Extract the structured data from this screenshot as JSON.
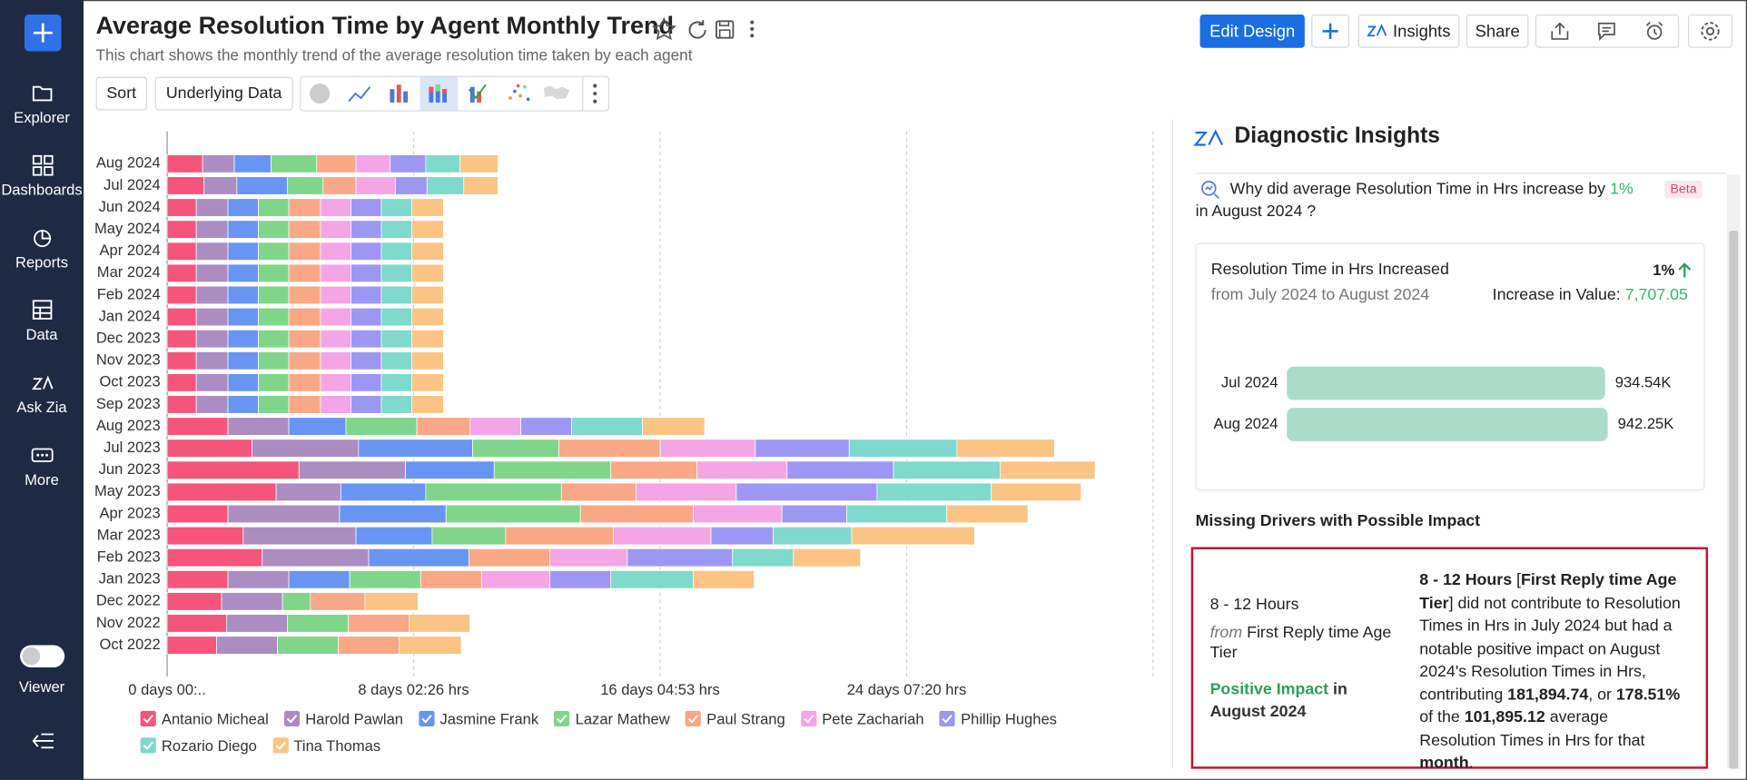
{
  "sidebar": {
    "items": [
      "Explorer",
      "Dashboards",
      "Reports",
      "Data",
      "Ask Zia",
      "More"
    ],
    "viewer": "Viewer"
  },
  "header": {
    "title": "Average Resolution Time by Agent Monthly Trend",
    "subtitle": "This chart shows the monthly trend of the average resolution time taken by each agent",
    "buttons": [
      "Edit Design",
      "Insights",
      "Share"
    ]
  },
  "toolbar": {
    "buttons": [
      "Sort",
      "Underlying Data"
    ]
  },
  "chart_data": {
    "type": "bar",
    "orientation": "horizontal",
    "stacked": true,
    "grid": true,
    "legend": "bottom",
    "categories": [
      "Aug 2024",
      "Jul 2024",
      "Jun 2024",
      "May 2024",
      "Apr 2024",
      "Mar 2024",
      "Feb 2024",
      "Jan 2024",
      "Dec 2023",
      "Nov 2023",
      "Oct 2023",
      "Sep 2023",
      "Aug 2023",
      "Jul 2023",
      "Jun 2023",
      "May 2023",
      "Apr 2023",
      "Mar 2023",
      "Feb 2023",
      "Jan 2023",
      "Dec 2022",
      "Nov 2022",
      "Oct 2022"
    ],
    "xlim": [
      0,
      777.78
    ],
    "xticks": [
      {
        "value": 0,
        "label": "0 days 00:.."
      },
      {
        "value": 194.43,
        "label": "8 days 02:26 hrs"
      },
      {
        "value": 388.88,
        "label": "16 days 04:53 hrs"
      },
      {
        "value": 583.33,
        "label": "24 days 07:20 hrs"
      }
    ],
    "series": [
      {
        "name": "Antanio Micheal",
        "color": "#f5557b",
        "values": [
          28,
          29,
          23,
          23,
          23,
          23,
          23,
          23,
          23,
          23,
          23,
          23,
          48,
          67,
          104,
          86,
          48,
          60,
          75,
          48,
          43,
          47,
          39
        ]
      },
      {
        "name": "Harold Pawlan",
        "color": "#ab8dc2",
        "values": [
          25,
          26,
          25,
          25,
          25,
          25,
          25,
          25,
          25,
          25,
          25,
          25,
          48,
          84,
          84,
          51,
          88,
          89,
          84,
          48,
          48,
          48,
          48
        ]
      },
      {
        "name": "Jasmine Frank",
        "color": "#6895f2",
        "values": [
          29,
          40,
          24,
          24,
          24,
          24,
          24,
          24,
          24,
          24,
          24,
          24,
          45,
          90,
          70,
          67,
          84,
          60,
          79,
          48,
          null,
          null,
          null
        ]
      },
      {
        "name": "Lazar Mathew",
        "color": "#7fd68a",
        "values": [
          36,
          28,
          24,
          24,
          24,
          24,
          24,
          24,
          24,
          24,
          24,
          24,
          56,
          68,
          92,
          107,
          106,
          58,
          null,
          56,
          22,
          48,
          48
        ]
      },
      {
        "name": "Paul Strang",
        "color": "#f9a785",
        "values": [
          31,
          26,
          25,
          25,
          25,
          25,
          25,
          25,
          25,
          25,
          25,
          25,
          42,
          80,
          68,
          59,
          89,
          85,
          64,
          48,
          43,
          48,
          48
        ]
      },
      {
        "name": "Pete Zachariah",
        "color": "#f4a5e6",
        "values": [
          27,
          31,
          24,
          24,
          24,
          24,
          24,
          24,
          24,
          24,
          24,
          24,
          40,
          75,
          71,
          79,
          70,
          77,
          61,
          54,
          null,
          null,
          null
        ]
      },
      {
        "name": "Phillip Hughes",
        "color": "#9d97f4",
        "values": [
          28,
          25,
          24,
          24,
          24,
          24,
          24,
          24,
          24,
          24,
          24,
          24,
          40,
          74,
          84,
          111,
          51,
          49,
          83,
          48,
          null,
          null,
          null
        ]
      },
      {
        "name": "Rozario Diego",
        "color": "#7fd9cd",
        "values": [
          27,
          29,
          24,
          24,
          24,
          24,
          24,
          24,
          24,
          24,
          24,
          24,
          56,
          85,
          84,
          90,
          79,
          62,
          48,
          65,
          null,
          null,
          null
        ]
      },
      {
        "name": "Tina Thomas",
        "color": "#fcc484",
        "values": [
          30,
          27,
          25,
          25,
          25,
          25,
          25,
          25,
          25,
          25,
          25,
          25,
          49,
          77,
          75,
          71,
          64,
          97,
          53,
          48,
          42,
          48,
          49
        ]
      }
    ]
  },
  "insights": {
    "title": "Diagnostic Insights",
    "question": [
      "Why did average Resolution Time in Hrs increase by ",
      "1%",
      " in August 2024 ?"
    ],
    "badge": "Beta",
    "summary": {
      "title": "Resolution Time in Hrs Increased",
      "period": "from July 2024 to August 2024",
      "change": "1%",
      "increase_label": "Increase in Value:",
      "increase_value": "7,707.05"
    },
    "comparison": {
      "type": "bar",
      "categories": [
        "Jul 2024",
        "Aug 2024"
      ],
      "values": [
        934540,
        942250
      ],
      "value_labels": [
        "934.54K",
        "942.25K"
      ],
      "color": "#abdcc9"
    },
    "drivers_title": "Missing Drivers with Possible Impact",
    "driver": {
      "name": "8 - 12 Hours",
      "from": "from",
      "source": "First Reply time Age Tier",
      "impact": "Positive Impact",
      "impact_period": "in August 2024",
      "description": [
        "8 - 12 Hours",
        " [",
        "First Reply time Age Tier",
        "] did not contribute to Resolution Times in Hrs in July 2024 but had a notable positive impact on August 2024's Resolution Times in Hrs, contributing ",
        "181,894.74",
        ", or ",
        "178.51%",
        " of the ",
        "101,895.12",
        " average Resolution Times in Hrs for that ",
        "month",
        "."
      ]
    }
  }
}
